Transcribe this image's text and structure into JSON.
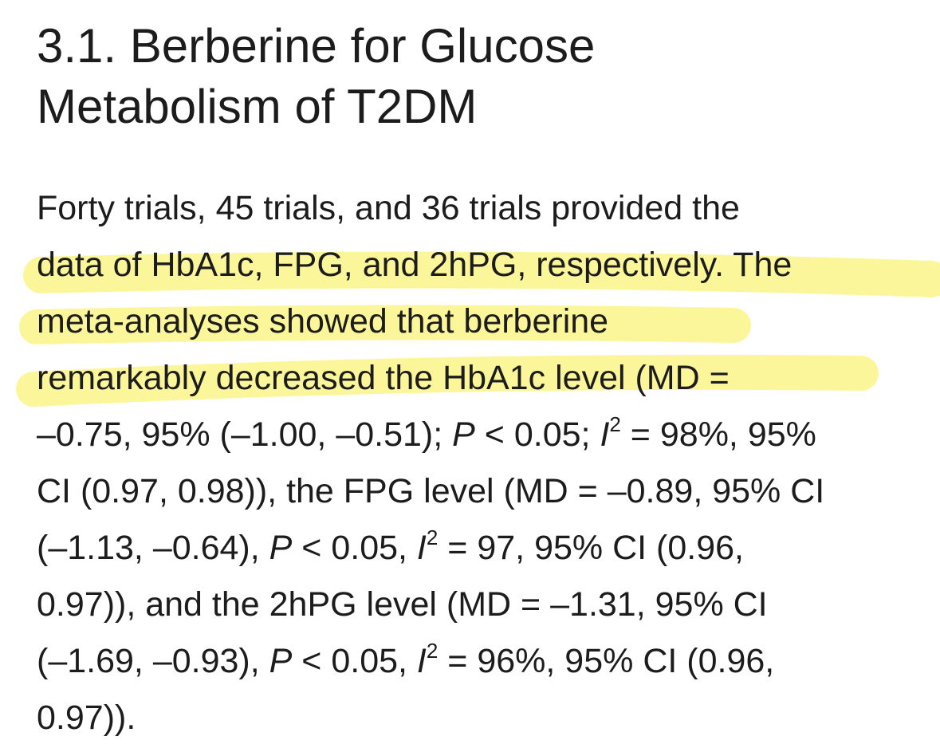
{
  "heading": {
    "lines": [
      "3.1. Berberine for Glucose",
      "Metabolism of T2DM"
    ]
  },
  "paragraph": {
    "lines": [
      [
        "Forty trials, 45 trials, and 36 trials provided the"
      ],
      [
        "data of HbA1c, FPG, and 2hPG, respectively. The"
      ],
      [
        "meta-analyses showed that berberine"
      ],
      [
        "remarkably decreased the HbA1c level (MD ="
      ],
      [
        "–0.75, 95% (–1.00, –0.51); ",
        "P",
        " < 0.05; ",
        "I",
        "2",
        " = 98%, 95%"
      ],
      [
        "CI (0.97, 0.98)), the FPG level (MD = –0.89, 95% CI"
      ],
      [
        "(–1.13, –0.64), ",
        "P",
        " < 0.05, ",
        "I",
        "2",
        " = 97, 95% CI (0.96,"
      ],
      [
        "0.97)), and the 2hPG level (MD = –1.31, 95% CI"
      ],
      [
        "(–1.69, –0.93), ",
        "P",
        " < 0.05, ",
        "I",
        "2",
        " = 96%, 95% CI (0.96,"
      ],
      [
        "0.97))."
      ]
    ]
  }
}
